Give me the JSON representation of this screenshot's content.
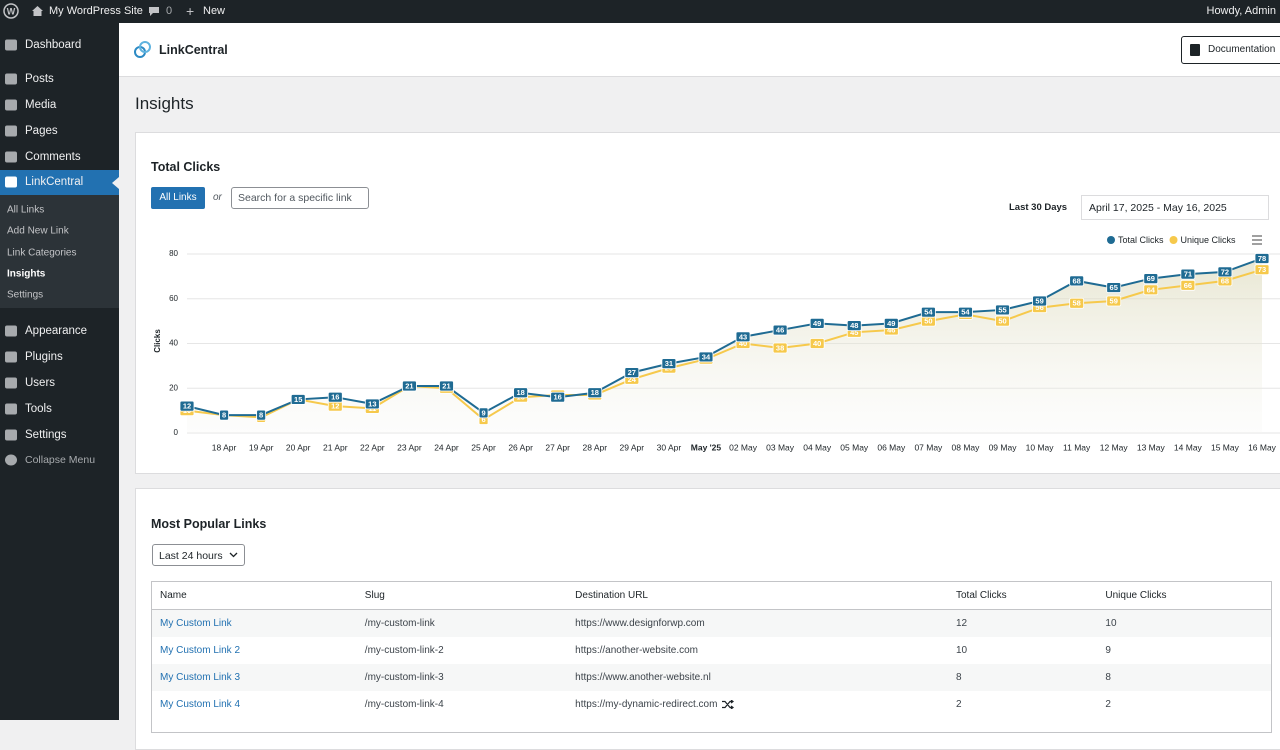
{
  "admin_bar": {
    "site": "My WordPress Site",
    "comments": 0,
    "new": "New",
    "greeting": "Howdy, Admin"
  },
  "sidebar": {
    "items": [
      "Dashboard",
      "Posts",
      "Media",
      "Pages",
      "Comments",
      "LinkCentral"
    ],
    "submenu": [
      "All Links",
      "Add New Link",
      "Link Categories",
      "Insights",
      "Settings"
    ],
    "items2": [
      "Appearance",
      "Plugins",
      "Users",
      "Tools",
      "Settings",
      "Collapse Menu"
    ]
  },
  "header": {
    "brand": "LinkCentral",
    "documentation": "Documentation"
  },
  "page_title": "Insights",
  "filters": {
    "all_links": "All Links",
    "or": "or",
    "search_placeholder": "Search for a specific link",
    "range_label": "Last 30 Days",
    "date_range": "April 17, 2025 - May 16, 2025"
  },
  "chart_data": {
    "type": "line",
    "title": "Total Clicks",
    "y_label": "Clicks",
    "categories": [
      null,
      "18 Apr",
      "19 Apr",
      "20 Apr",
      "21 Apr",
      "22 Apr",
      "23 Apr",
      "24 Apr",
      "25 Apr",
      "26 Apr",
      "27 Apr",
      "28 Apr",
      "29 Apr",
      "30 Apr",
      "May '25",
      "02 May",
      "03 May",
      "04 May",
      "05 May",
      "06 May",
      "07 May",
      "08 May",
      "09 May",
      "10 May",
      "11 May",
      "12 May",
      "13 May",
      "14 May",
      "15 May",
      "16 May"
    ],
    "series": [
      {
        "name": "Total Clicks",
        "color": "#1f6b93",
        "values": [
          12,
          8,
          8,
          15,
          16,
          13,
          21,
          21,
          9,
          18,
          16,
          18,
          27,
          31,
          34,
          43,
          46,
          49,
          48,
          49,
          54,
          54,
          55,
          59,
          68,
          65,
          69,
          71,
          72,
          78
        ]
      },
      {
        "name": "Unique Clicks",
        "color": "#f6c94c",
        "values": [
          10,
          8,
          7,
          15,
          12,
          11,
          21,
          20,
          6,
          16,
          17,
          17,
          24,
          29,
          33,
          40,
          38,
          40,
          45,
          46,
          50,
          53,
          50,
          56,
          58,
          59,
          64,
          66,
          68,
          73
        ]
      }
    ],
    "ylim": [
      0,
      80
    ],
    "yticks": [
      0,
      20,
      40,
      60,
      80
    ],
    "grid": true
  },
  "popular": {
    "title": "Most Popular Links",
    "period": "Last 24 hours",
    "columns": [
      "Name",
      "Slug",
      "Destination URL",
      "Total Clicks",
      "Unique Clicks"
    ],
    "rows": [
      [
        "My Custom Link",
        "/my-custom-link",
        "https://www.designforwp.com",
        12,
        10
      ],
      [
        "My Custom Link 2",
        "/my-custom-link-2",
        "https://another-website.com",
        10,
        9
      ],
      [
        "My Custom Link 3",
        "/my-custom-link-3",
        "https://www.another-website.nl",
        8,
        8
      ],
      [
        "My Custom Link 4",
        "/my-custom-link-4",
        "https://my-dynamic-redirect.com",
        2,
        2
      ]
    ]
  }
}
